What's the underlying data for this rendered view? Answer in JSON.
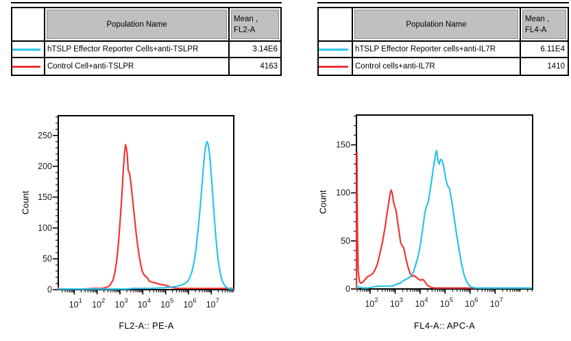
{
  "colors": {
    "cyan": "#28c3ee",
    "red": "#f23333",
    "axis": "#000000",
    "table_header_bg": "#c0c0c0",
    "table_header_border": "#8a8a8a"
  },
  "tables": [
    {
      "columns": {
        "name": "Population Name",
        "mean_line1": "Mean ,",
        "mean_line2": "FL2-A"
      },
      "rows": [
        {
          "swatch_color": "cyan",
          "name": "hTSLP Effector Reporter Cells+anti-TSLPR",
          "mean": "3.14E6"
        },
        {
          "swatch_color": "red",
          "name": "Control Cell+anti-TSLPR",
          "mean": "4163"
        }
      ]
    },
    {
      "columns": {
        "name": "Population Name",
        "mean_line1": "Mean ,",
        "mean_line2": "FL4-A"
      },
      "rows": [
        {
          "swatch_color": "cyan",
          "name": "hTSLP Effector Reporter cells+anti-IL7R",
          "mean": "6.11E4"
        },
        {
          "swatch_color": "red",
          "name": "Control cells+anti-IL7R",
          "mean": "1410"
        }
      ]
    }
  ],
  "chart_data": [
    {
      "type": "line",
      "subtype": "flow-cytometry-histogram",
      "xlabel": "FL2-A:: PE-A",
      "ylabel": "Count",
      "x_scale": "log10",
      "x_decades": [
        1,
        2,
        3,
        4,
        5,
        6,
        7
      ],
      "x_range_log": [
        0.3,
        7.98
      ],
      "y_ticks": [
        0,
        50,
        100,
        150,
        200,
        250
      ],
      "y_minor_step": 10,
      "ylim": [
        0,
        282
      ],
      "grid": false,
      "legend": "none (see table)",
      "series": [
        {
          "name": "Control Cell+anti-TSLPR",
          "color": "red",
          "mean": "4163",
          "peak_x_log": 3.24,
          "peak_count": 235,
          "points": [
            [
              0.3,
              4
            ],
            [
              0.33,
              1
            ],
            [
              0.8,
              1
            ],
            [
              1.4,
              1
            ],
            [
              1.9,
              2
            ],
            [
              2.2,
              2
            ],
            [
              2.35,
              3
            ],
            [
              2.5,
              5
            ],
            [
              2.6,
              9
            ],
            [
              2.7,
              16
            ],
            [
              2.78,
              28
            ],
            [
              2.85,
              45
            ],
            [
              2.9,
              62
            ],
            [
              2.95,
              82
            ],
            [
              3.0,
              108
            ],
            [
              3.05,
              135
            ],
            [
              3.1,
              162
            ],
            [
              3.15,
              196
            ],
            [
              3.2,
              222
            ],
            [
              3.24,
              235
            ],
            [
              3.28,
              230
            ],
            [
              3.32,
              218
            ],
            [
              3.36,
              193
            ],
            [
              3.42,
              189
            ],
            [
              3.48,
              172
            ],
            [
              3.54,
              152
            ],
            [
              3.6,
              130
            ],
            [
              3.66,
              108
            ],
            [
              3.72,
              88
            ],
            [
              3.78,
              70
            ],
            [
              3.84,
              55
            ],
            [
              3.9,
              42
            ],
            [
              3.96,
              32
            ],
            [
              4.02,
              26
            ],
            [
              4.1,
              22
            ],
            [
              4.18,
              20
            ],
            [
              4.28,
              14
            ],
            [
              4.4,
              12
            ],
            [
              4.55,
              11
            ],
            [
              4.7,
              9
            ],
            [
              4.85,
              8
            ],
            [
              5.0,
              7
            ],
            [
              5.1,
              6
            ],
            [
              5.2,
              4
            ],
            [
              5.35,
              3
            ],
            [
              5.5,
              2
            ],
            [
              6.2,
              2
            ],
            [
              7.0,
              2
            ],
            [
              7.95,
              2
            ]
          ]
        },
        {
          "name": "hTSLP Effector Reporter Cells+anti-TSLPR",
          "color": "cyan",
          "mean": "3.14E6",
          "peak_x_log": 6.8,
          "peak_count": 240,
          "points": [
            [
              0.3,
              1
            ],
            [
              1.5,
              1
            ],
            [
              2.5,
              1
            ],
            [
              3.3,
              1
            ],
            [
              3.6,
              2
            ],
            [
              4.3,
              2
            ],
            [
              4.9,
              3
            ],
            [
              5.2,
              4
            ],
            [
              5.45,
              5
            ],
            [
              5.65,
              7
            ],
            [
              5.8,
              9
            ],
            [
              5.95,
              13
            ],
            [
              6.05,
              19
            ],
            [
              6.15,
              29
            ],
            [
              6.25,
              46
            ],
            [
              6.33,
              66
            ],
            [
              6.4,
              90
            ],
            [
              6.47,
              116
            ],
            [
              6.53,
              143
            ],
            [
              6.59,
              170
            ],
            [
              6.65,
              198
            ],
            [
              6.7,
              218
            ],
            [
              6.75,
              232
            ],
            [
              6.8,
              240
            ],
            [
              6.85,
              237
            ],
            [
              6.9,
              227
            ],
            [
              6.95,
              209
            ],
            [
              7.0,
              185
            ],
            [
              7.05,
              159
            ],
            [
              7.1,
              133
            ],
            [
              7.15,
              107
            ],
            [
              7.2,
              84
            ],
            [
              7.25,
              64
            ],
            [
              7.3,
              47
            ],
            [
              7.36,
              33
            ],
            [
              7.42,
              22
            ],
            [
              7.48,
              14
            ],
            [
              7.55,
              9
            ],
            [
              7.62,
              5
            ],
            [
              7.7,
              3
            ],
            [
              7.8,
              1
            ],
            [
              7.95,
              1
            ]
          ]
        }
      ]
    },
    {
      "type": "line",
      "subtype": "flow-cytometry-histogram",
      "xlabel": "FL4-A:: APC-A",
      "ylabel": "Count",
      "x_scale": "log10",
      "x_decades": [
        2,
        3,
        4,
        5,
        6,
        7
      ],
      "x_range_log": [
        1.45,
        8.5
      ],
      "y_ticks": [
        0,
        50,
        100,
        150
      ],
      "y_minor_step": 10,
      "ylim": [
        0,
        181
      ],
      "grid": false,
      "legend": "none (see table)",
      "series": [
        {
          "name": "Control cells+anti-IL7R",
          "color": "red",
          "mean": "1410",
          "peak_x_log": 2.84,
          "peak_count": 103,
          "edge_spike_count": 142,
          "points": [
            [
              1.45,
              0
            ],
            [
              1.47,
              142
            ],
            [
              1.49,
              60
            ],
            [
              1.52,
              18
            ],
            [
              1.57,
              8
            ],
            [
              1.62,
              6
            ],
            [
              1.7,
              7
            ],
            [
              1.8,
              10
            ],
            [
              1.9,
              13
            ],
            [
              2.0,
              14
            ],
            [
              2.1,
              16
            ],
            [
              2.2,
              20
            ],
            [
              2.3,
              27
            ],
            [
              2.4,
              38
            ],
            [
              2.5,
              50
            ],
            [
              2.6,
              65
            ],
            [
              2.7,
              83
            ],
            [
              2.76,
              93
            ],
            [
              2.8,
              100
            ],
            [
              2.84,
              103
            ],
            [
              2.88,
              100
            ],
            [
              2.93,
              91
            ],
            [
              2.98,
              86
            ],
            [
              3.04,
              81
            ],
            [
              3.1,
              70
            ],
            [
              3.17,
              57
            ],
            [
              3.22,
              48
            ],
            [
              3.28,
              45
            ],
            [
              3.34,
              43
            ],
            [
              3.42,
              33
            ],
            [
              3.5,
              24
            ],
            [
              3.6,
              16
            ],
            [
              3.68,
              13
            ],
            [
              3.76,
              14
            ],
            [
              3.85,
              12
            ],
            [
              3.95,
              10
            ],
            [
              4.02,
              9
            ],
            [
              4.1,
              10
            ],
            [
              4.18,
              8
            ],
            [
              4.28,
              4
            ],
            [
              4.4,
              2
            ],
            [
              4.55,
              1
            ],
            [
              5.0,
              1
            ],
            [
              6.0,
              1
            ],
            [
              7.0,
              1
            ],
            [
              8.0,
              1
            ],
            [
              8.45,
              1
            ]
          ]
        },
        {
          "name": "hTSLP Effector Reporter cells+anti-IL7R",
          "color": "cyan",
          "mean": "6.11E4",
          "peak_x_log": 4.66,
          "peak_count": 144,
          "points": [
            [
              1.45,
              3
            ],
            [
              1.55,
              2
            ],
            [
              1.7,
              1
            ],
            [
              1.9,
              1
            ],
            [
              2.1,
              2
            ],
            [
              2.3,
              3
            ],
            [
              2.5,
              3
            ],
            [
              2.7,
              3
            ],
            [
              2.9,
              3
            ],
            [
              3.05,
              5
            ],
            [
              3.2,
              6
            ],
            [
              3.35,
              9
            ],
            [
              3.5,
              11
            ],
            [
              3.62,
              13
            ],
            [
              3.72,
              17
            ],
            [
              3.82,
              25
            ],
            [
              3.92,
              34
            ],
            [
              4.0,
              45
            ],
            [
              4.1,
              62
            ],
            [
              4.18,
              78
            ],
            [
              4.25,
              86
            ],
            [
              4.32,
              90
            ],
            [
              4.4,
              103
            ],
            [
              4.48,
              117
            ],
            [
              4.55,
              130
            ],
            [
              4.62,
              141
            ],
            [
              4.66,
              144
            ],
            [
              4.71,
              134
            ],
            [
              4.76,
              130
            ],
            [
              4.82,
              135
            ],
            [
              4.88,
              134
            ],
            [
              4.95,
              126
            ],
            [
              5.02,
              115
            ],
            [
              5.1,
              107
            ],
            [
              5.17,
              105
            ],
            [
              5.25,
              94
            ],
            [
              5.35,
              76
            ],
            [
              5.45,
              58
            ],
            [
              5.55,
              42
            ],
            [
              5.65,
              27
            ],
            [
              5.75,
              15
            ],
            [
              5.85,
              8
            ],
            [
              5.95,
              4
            ],
            [
              6.05,
              2
            ],
            [
              6.2,
              1
            ],
            [
              6.6,
              1
            ],
            [
              7.2,
              1
            ],
            [
              8.0,
              1
            ],
            [
              8.45,
              1
            ]
          ]
        }
      ]
    }
  ]
}
